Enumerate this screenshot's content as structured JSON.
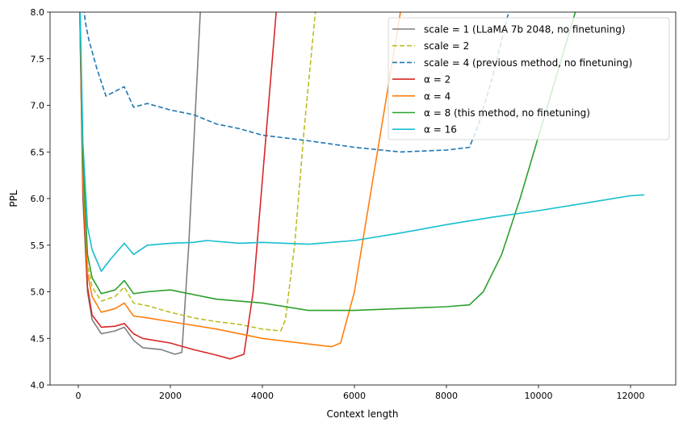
{
  "chart_data": {
    "type": "line",
    "title": "",
    "xlabel": "Context length",
    "ylabel": "PPL",
    "xlim": [
      -614,
      12982
    ],
    "ylim": [
      4.0,
      8.0
    ],
    "xticks": [
      0,
      2000,
      4000,
      6000,
      8000,
      10000,
      12000
    ],
    "xtick_labels": [
      "0",
      "2000",
      "4000",
      "6000",
      "8000",
      "10000",
      "12000"
    ],
    "yticks": [
      4.0,
      4.5,
      5.0,
      5.5,
      6.0,
      6.5,
      7.0,
      7.5,
      8.0
    ],
    "ytick_labels": [
      "4.0",
      "4.5",
      "5.0",
      "5.5",
      "6.0",
      "6.5",
      "7.0",
      "7.5",
      "8.0"
    ],
    "grid": false,
    "legend_position": "top-right",
    "series": [
      {
        "name": "scale = 1 (LLaMA 7b 2048, no finetuning)",
        "color": "#7f7f7f",
        "dash": "solid",
        "x": [
          0,
          50,
          100,
          200,
          300,
          500,
          800,
          1000,
          1200,
          1400,
          1800,
          2100,
          2250,
          2400,
          2650
        ],
        "y": [
          9,
          7.5,
          6.0,
          5.0,
          4.7,
          4.55,
          4.58,
          4.62,
          4.48,
          4.4,
          4.38,
          4.33,
          4.35,
          5.5,
          8.0
        ]
      },
      {
        "name": "scale = 2",
        "color": "#bcbd22",
        "dash": "dashed",
        "x": [
          0,
          50,
          100,
          200,
          300,
          500,
          800,
          1000,
          1200,
          1500,
          2000,
          2500,
          3000,
          3500,
          4000,
          4400,
          4500,
          4700,
          4900,
          5150
        ],
        "y": [
          9,
          7.6,
          6.3,
          5.3,
          5.05,
          4.9,
          4.95,
          5.05,
          4.88,
          4.85,
          4.78,
          4.72,
          4.68,
          4.65,
          4.6,
          4.58,
          4.7,
          5.5,
          6.7,
          8.0
        ]
      },
      {
        "name": "scale = 4 (previous method, no finetuning)",
        "color": "#1f77b4",
        "dash": "dashed",
        "x": [
          100,
          150,
          230,
          400,
          600,
          800,
          1000,
          1200,
          1500,
          2000,
          2500,
          3000,
          3500,
          4000,
          5000,
          6000,
          7000,
          8000,
          8500,
          8700,
          9000,
          9350
        ],
        "y": [
          8.2,
          7.9,
          7.7,
          7.4,
          7.1,
          7.15,
          7.2,
          6.98,
          7.02,
          6.95,
          6.9,
          6.8,
          6.75,
          6.68,
          6.62,
          6.55,
          6.5,
          6.52,
          6.55,
          6.8,
          7.3,
          8.0
        ]
      },
      {
        "name": "α = 2",
        "color": "#d62728",
        "dash": "solid",
        "x": [
          0,
          50,
          100,
          200,
          300,
          500,
          800,
          1000,
          1200,
          1400,
          2000,
          2500,
          3000,
          3300,
          3600,
          3800,
          4000,
          4300
        ],
        "y": [
          9,
          7.5,
          6.1,
          5.05,
          4.75,
          4.62,
          4.63,
          4.66,
          4.55,
          4.5,
          4.45,
          4.38,
          4.32,
          4.28,
          4.33,
          5.0,
          6.2,
          8.0
        ]
      },
      {
        "name": "α = 4",
        "color": "#ff7f0e",
        "dash": "solid",
        "x": [
          0,
          50,
          100,
          200,
          300,
          500,
          800,
          1000,
          1200,
          1500,
          2000,
          3000,
          4000,
          5000,
          5500,
          5700,
          6000,
          6500,
          7000
        ],
        "y": [
          9,
          7.6,
          6.2,
          5.2,
          4.95,
          4.78,
          4.82,
          4.88,
          4.74,
          4.72,
          4.68,
          4.6,
          4.5,
          4.44,
          4.41,
          4.45,
          5.0,
          6.5,
          8.0
        ]
      },
      {
        "name": "α = 8 (this method, no finetuning)",
        "color": "#2ca02c",
        "dash": "solid",
        "x": [
          0,
          50,
          100,
          200,
          300,
          500,
          800,
          1000,
          1200,
          1500,
          2000,
          3000,
          4000,
          5000,
          6000,
          7000,
          8000,
          8500,
          8800,
          9200,
          9600,
          10200,
          10800
        ],
        "y": [
          9,
          7.7,
          6.4,
          5.4,
          5.15,
          4.98,
          5.02,
          5.12,
          4.98,
          5.0,
          5.02,
          4.92,
          4.88,
          4.8,
          4.8,
          4.82,
          4.84,
          4.86,
          5.0,
          5.4,
          6.0,
          7.0,
          8.0
        ]
      },
      {
        "name": "α = 16",
        "color": "#17becf",
        "dash": "solid",
        "x": [
          0,
          50,
          100,
          200,
          300,
          500,
          700,
          1000,
          1200,
          1500,
          2000,
          2500,
          2800,
          3500,
          4000,
          5000,
          6000,
          7000,
          8000,
          9000,
          10000,
          11000,
          12000,
          12300
        ],
        "y": [
          9,
          7.8,
          6.6,
          5.7,
          5.45,
          5.22,
          5.35,
          5.52,
          5.4,
          5.5,
          5.52,
          5.53,
          5.55,
          5.52,
          5.53,
          5.51,
          5.55,
          5.63,
          5.72,
          5.8,
          5.87,
          5.95,
          6.03,
          6.04
        ]
      }
    ]
  }
}
